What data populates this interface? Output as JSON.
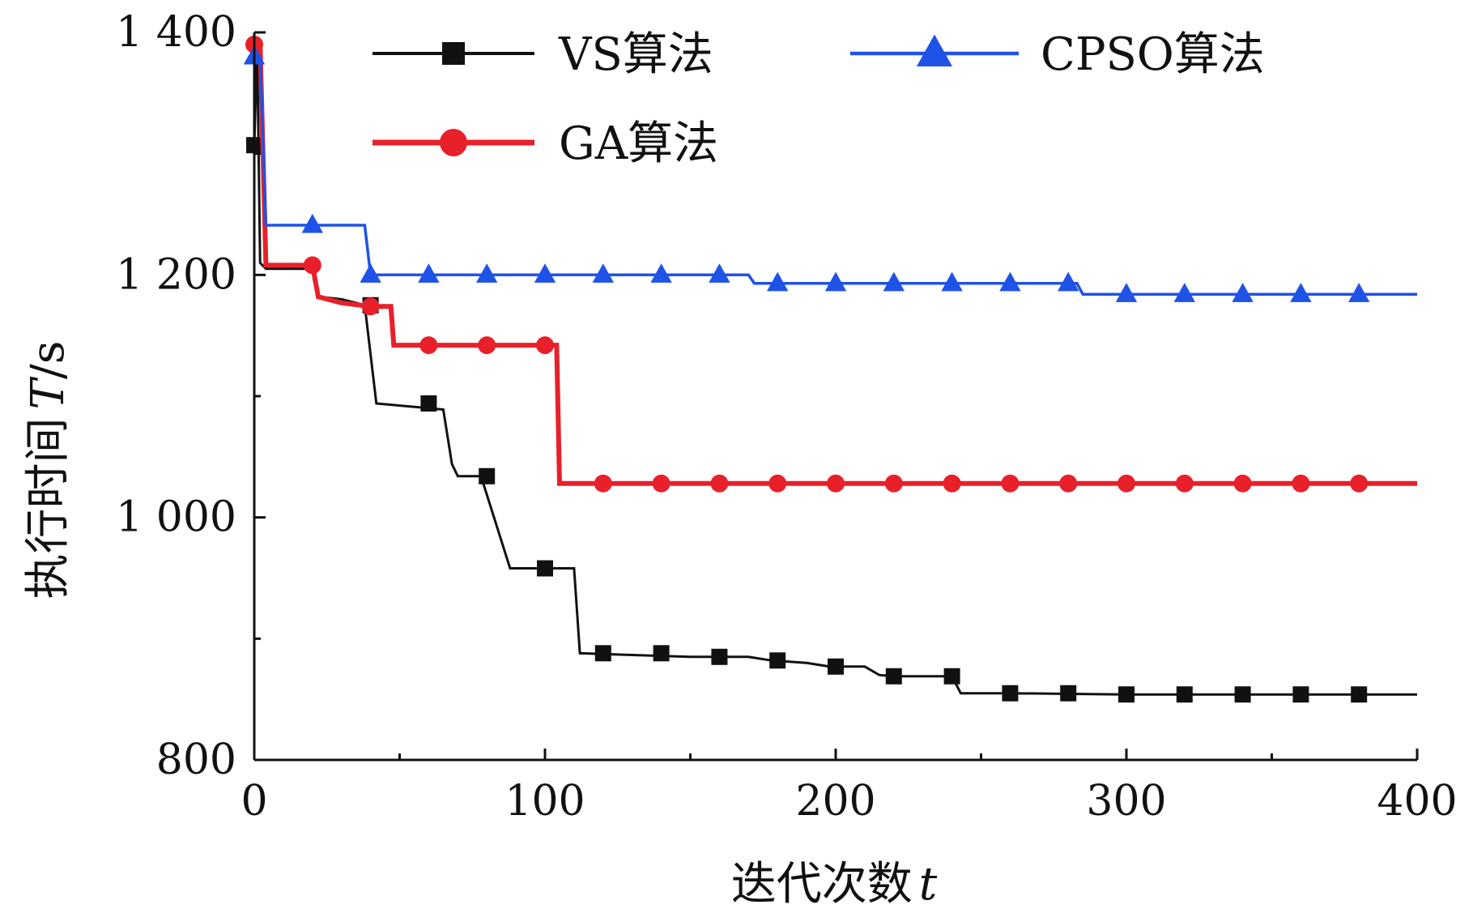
{
  "chart_data": {
    "type": "line",
    "title": "",
    "xlabel": "迭代次数",
    "xlabel_var": "t",
    "ylabel": "执行时间",
    "ylabel_var": "T",
    "ylabel_unit": "/s",
    "xlim": [
      0,
      400
    ],
    "ylim": [
      800,
      1400
    ],
    "x_ticks": [
      0,
      100,
      200,
      300,
      400
    ],
    "x_tick_labels": [
      "0",
      "100",
      "200",
      "300",
      "400"
    ],
    "y_ticks": [
      800,
      1000,
      1200,
      1400
    ],
    "y_tick_labels": [
      "800",
      "1 000",
      "1 200",
      "1 400"
    ],
    "grid": false,
    "legend_position": "top",
    "series": [
      {
        "name": "VS算法",
        "color": "#111111",
        "marker": "square",
        "x": [
          0,
          1,
          2,
          4,
          20,
          22,
          30,
          35,
          38,
          42,
          65,
          68,
          70,
          78,
          88,
          110,
          112,
          150,
          170,
          178,
          190,
          198,
          210,
          215,
          220,
          240,
          243,
          260,
          300,
          400
        ],
        "values": [
          1307,
          1390,
          1210,
          1205,
          1205,
          1182,
          1180,
          1177,
          1175,
          1094,
          1089,
          1044,
          1034,
          1034,
          958,
          958,
          888,
          885,
          885,
          882,
          880,
          877,
          877,
          870,
          869,
          869,
          855,
          855,
          854,
          854
        ],
        "marker_x": [
          0,
          40,
          60,
          80,
          100,
          120,
          140,
          160,
          180,
          200,
          220,
          240,
          260,
          280,
          300,
          320,
          340,
          360,
          380
        ]
      },
      {
        "name": "GA算法",
        "color": "#e8202a",
        "marker": "circle",
        "x": [
          0,
          2,
          4,
          20,
          22,
          30,
          40,
          47,
          48,
          100,
          104,
          105,
          400
        ],
        "values": [
          1390,
          1390,
          1208,
          1208,
          1182,
          1177,
          1174,
          1174,
          1142,
          1142,
          1142,
          1028,
          1028
        ],
        "marker_x": [
          0,
          20,
          40,
          60,
          80,
          100,
          120,
          140,
          160,
          180,
          200,
          220,
          240,
          260,
          280,
          300,
          320,
          340,
          360,
          380
        ]
      },
      {
        "name": "CPSO算法",
        "color": "#1f52e6",
        "marker": "triangle",
        "x": [
          0,
          2,
          4,
          38,
          40,
          170,
          172,
          283,
          285,
          400
        ],
        "values": [
          1380,
          1380,
          1241,
          1241,
          1200,
          1200,
          1193,
          1193,
          1184,
          1184
        ],
        "marker_x": [
          0,
          20,
          40,
          60,
          80,
          100,
          120,
          140,
          160,
          180,
          200,
          220,
          240,
          260,
          280,
          300,
          320,
          340,
          360,
          380
        ]
      }
    ]
  }
}
